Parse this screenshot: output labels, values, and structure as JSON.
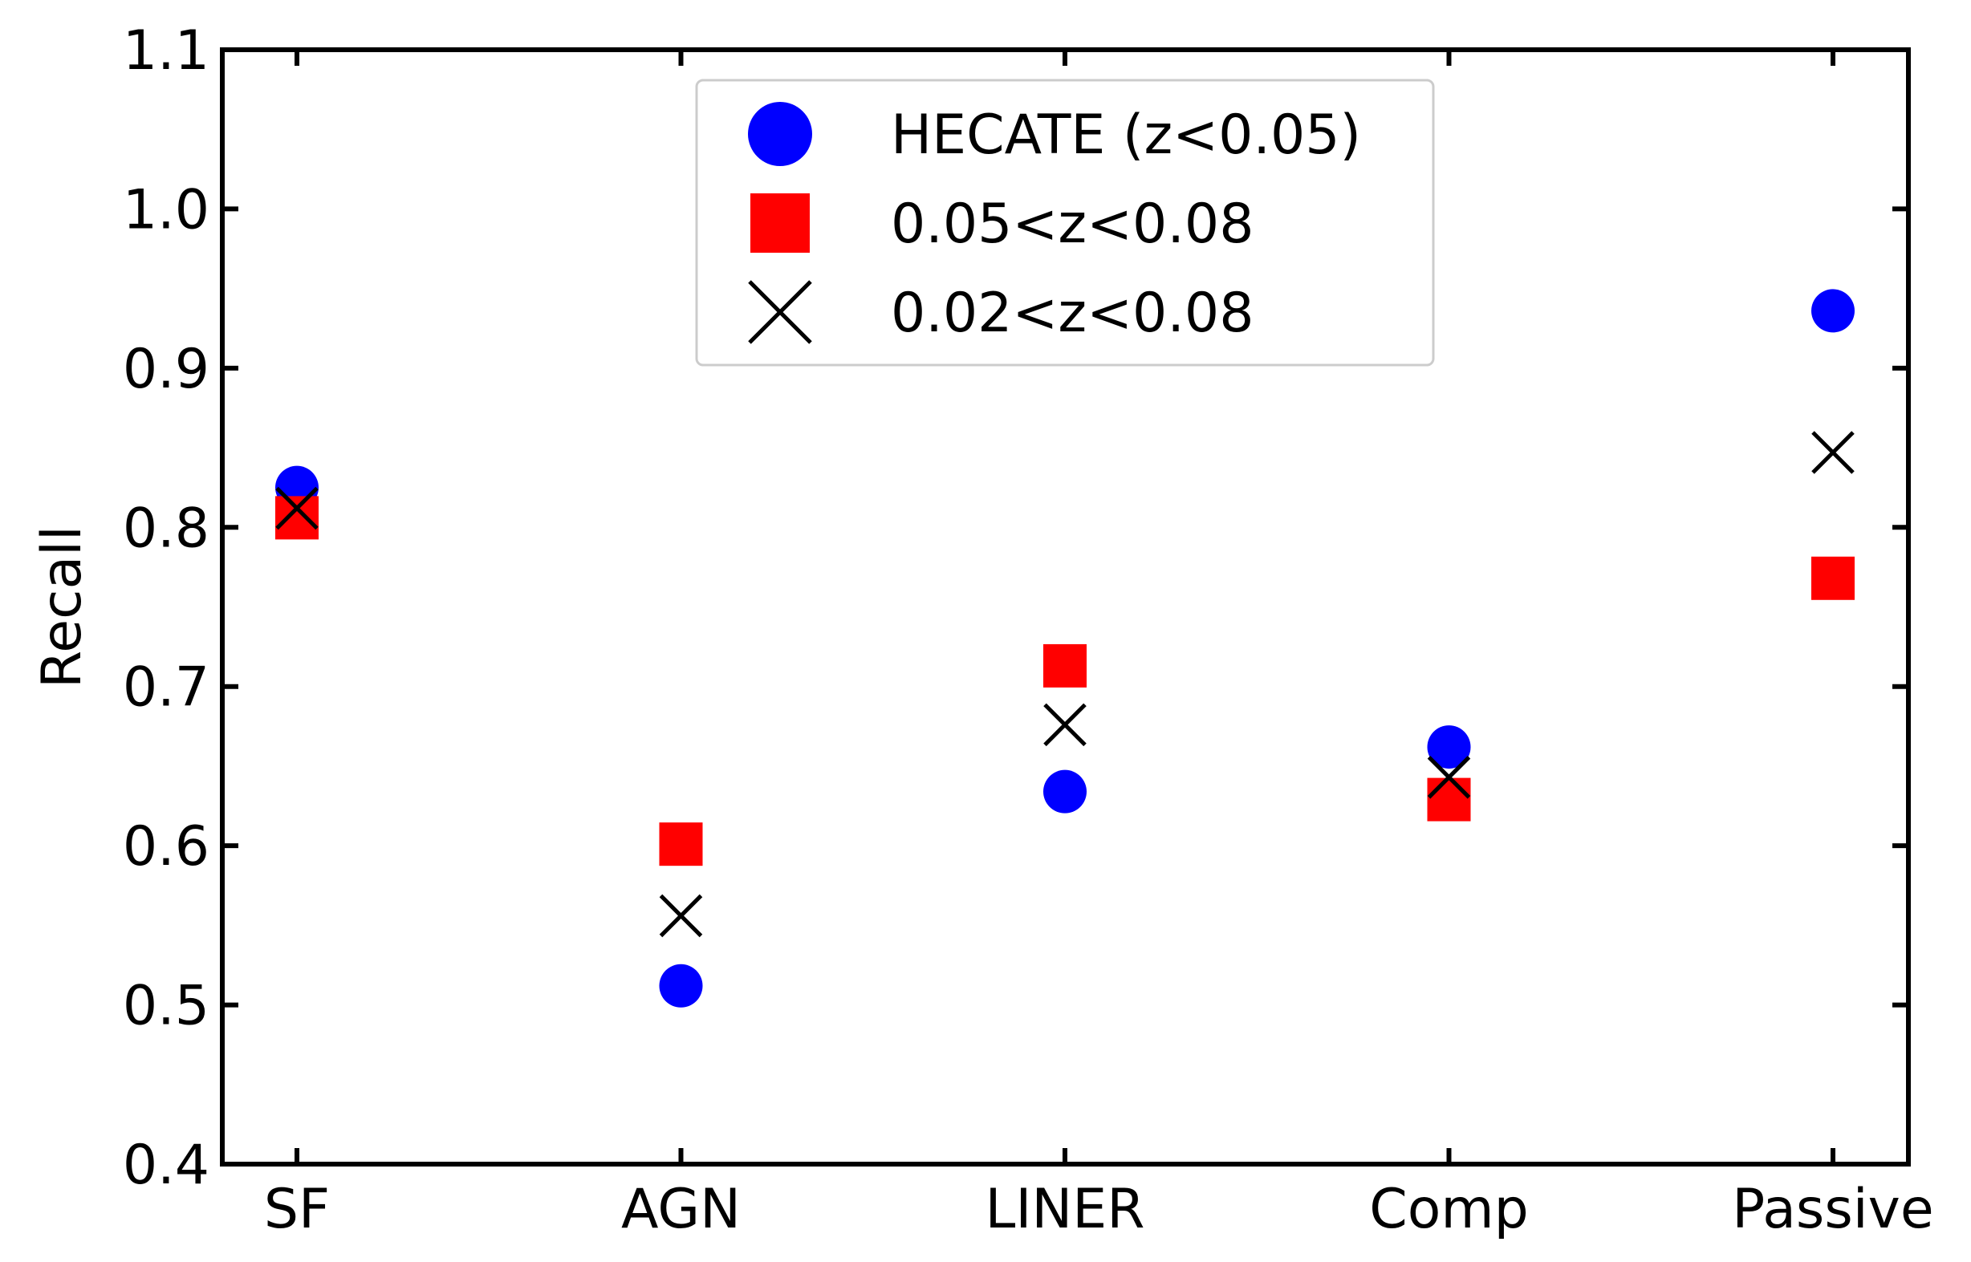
{
  "chart_data": {
    "type": "scatter",
    "title": "",
    "xlabel": "",
    "ylabel": "Recall",
    "categories": [
      "SF",
      "AGN",
      "LINER",
      "Comp",
      "Passive"
    ],
    "ylim": [
      0.4,
      1.1
    ],
    "yticks": [
      "0.4",
      "0.5",
      "0.6",
      "0.7",
      "0.8",
      "0.9",
      "1.0",
      "1.1"
    ],
    "grid": false,
    "legend_position": "top-center",
    "series": [
      {
        "name": "HECATE (z<0.05)",
        "marker": "circle",
        "color": "#0000ff",
        "values": [
          0.825,
          0.512,
          0.634,
          0.662,
          0.936
        ]
      },
      {
        "name": "0.05<z<0.08",
        "marker": "square",
        "color": "#ff0000",
        "values": [
          0.806,
          0.601,
          0.713,
          0.629,
          0.768
        ]
      },
      {
        "name": "0.02<z<0.08",
        "marker": "x",
        "color": "#000000",
        "values": [
          0.812,
          0.556,
          0.676,
          0.643,
          0.847
        ]
      }
    ]
  }
}
